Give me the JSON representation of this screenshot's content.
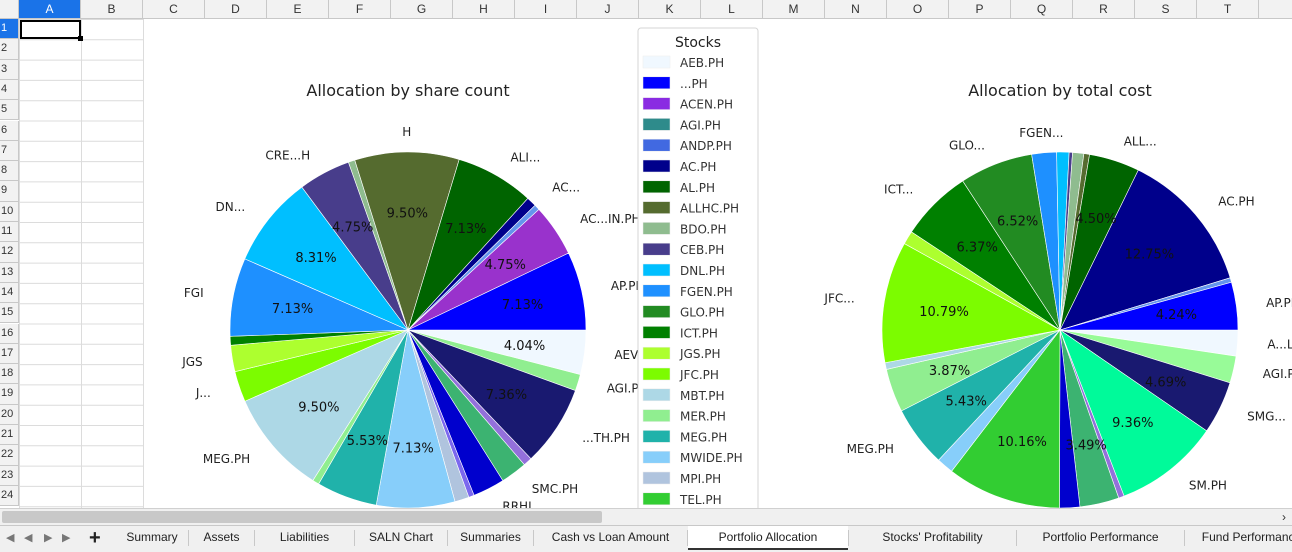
{
  "spreadsheet": {
    "columns": [
      "A",
      "B",
      "C",
      "D",
      "E",
      "F",
      "G",
      "H",
      "I",
      "J",
      "K",
      "L",
      "M",
      "N",
      "O",
      "P",
      "Q",
      "R",
      "S",
      "T"
    ],
    "active_column": "A",
    "rows": [
      "1",
      "2",
      "3",
      "4",
      "5",
      "6",
      "7",
      "8",
      "9",
      "10",
      "11",
      "12",
      "13",
      "14",
      "15",
      "16",
      "17",
      "18",
      "19",
      "20",
      "21",
      "22",
      "23",
      "24"
    ],
    "active_row": "1"
  },
  "charts": {
    "legend_title": "Stocks",
    "legend_items": [
      {
        "label": "AEB.PH",
        "color": "#f0f8ff"
      },
      {
        "label": "...PH",
        "color": "#0000ff"
      },
      {
        "label": "ACEN.PH",
        "color": "#8a2be2"
      },
      {
        "label": "AGI.PH",
        "color": "#2e8b8b"
      },
      {
        "label": "ANDP.PH",
        "color": "#4169e1"
      },
      {
        "label": "AC.PH",
        "color": "#00008b"
      },
      {
        "label": "AL.PH",
        "color": "#006400"
      },
      {
        "label": "ALLHC.PH",
        "color": "#556b2f"
      },
      {
        "label": "BDO.PH",
        "color": "#8fbc8f"
      },
      {
        "label": "CEB.PH",
        "color": "#483d8b"
      },
      {
        "label": "DNL.PH",
        "color": "#00bfff"
      },
      {
        "label": "FGEN.PH",
        "color": "#1e90ff"
      },
      {
        "label": "GLO.PH",
        "color": "#228b22"
      },
      {
        "label": "ICT.PH",
        "color": "#008000"
      },
      {
        "label": "JGS.PH",
        "color": "#adff2f"
      },
      {
        "label": "JFC.PH",
        "color": "#7cfc00"
      },
      {
        "label": "MBT.PH",
        "color": "#add8e6"
      },
      {
        "label": "MER.PH",
        "color": "#90ee90"
      },
      {
        "label": "MEG.PH",
        "color": "#20b2aa"
      },
      {
        "label": "MWIDE.PH",
        "color": "#87cefa"
      },
      {
        "label": "MPI.PH",
        "color": "#b0c4de"
      },
      {
        "label": "TEL.PH",
        "color": "#32cd32"
      }
    ],
    "pie1": {
      "title": "Allocation by share count",
      "slices": [
        {
          "value": 4.04,
          "color": "#f0f8ff",
          "label": "4.04%",
          "name": "AEV.PH"
        },
        {
          "value": 1.5,
          "color": "#90ee90",
          "label": "",
          "name": "AGI.PH"
        },
        {
          "value": 7.36,
          "color": "#191970",
          "label": "7.36%",
          "name": "...TH.PH"
        },
        {
          "value": 0.8,
          "color": "#9370db",
          "label": "",
          "name": ""
        },
        {
          "value": 2.4,
          "color": "#3cb371",
          "label": "",
          "name": "SMC.PH"
        },
        {
          "value": 2.9,
          "color": "#0000cd",
          "label": "",
          "name": "RRHI"
        },
        {
          "value": 0.5,
          "color": "#7b68ee",
          "label": "",
          "name": ""
        },
        {
          "value": 1.3,
          "color": "#b0c4de",
          "label": "",
          "name": ""
        },
        {
          "value": 7.13,
          "color": "#87cefa",
          "label": "7.13%",
          "name": ""
        },
        {
          "value": 5.53,
          "color": "#20b2aa",
          "label": "5.53%",
          "name": ""
        },
        {
          "value": 0.6,
          "color": "#90ee90",
          "label": "",
          "name": ""
        },
        {
          "value": 9.5,
          "color": "#add8e6",
          "label": "9.50%",
          "name": "MEG.PH"
        },
        {
          "value": 2.8,
          "color": "#7cfc00",
          "label": "",
          "name": "J..."
        },
        {
          "value": 2.4,
          "color": "#adff2f",
          "label": "",
          "name": "JGS"
        },
        {
          "value": 0.8,
          "color": "#008000",
          "label": "",
          "name": ""
        },
        {
          "value": 7.13,
          "color": "#1e90ff",
          "label": "7.13%",
          "name": "FGI"
        },
        {
          "value": 8.31,
          "color": "#00bfff",
          "label": "8.31%",
          "name": "DN..."
        },
        {
          "value": 4.75,
          "color": "#483d8b",
          "label": "4.75%",
          "name": "CRE...H"
        },
        {
          "value": 0.6,
          "color": "#8fbc8f",
          "label": "",
          "name": ""
        },
        {
          "value": 9.5,
          "color": "#556b2f",
          "label": "9.50%",
          "name": "H"
        },
        {
          "value": 7.13,
          "color": "#006400",
          "label": "7.13%",
          "name": "ALI..."
        },
        {
          "value": 0.9,
          "color": "#00008b",
          "label": "",
          "name": "AC..."
        },
        {
          "value": 0.5,
          "color": "#6495ed",
          "label": "",
          "name": ""
        },
        {
          "value": 4.75,
          "color": "#9932cc",
          "label": "4.75%",
          "name": "AC...IN.PH"
        },
        {
          "value": 7.13,
          "color": "#0000ff",
          "label": "7.13%",
          "name": "AP.PH"
        }
      ]
    },
    "pie2": {
      "title": "Allocation by total cost",
      "slices": [
        {
          "value": 2.3,
          "color": "#f0f8ff",
          "label": "",
          "name": "A...L"
        },
        {
          "value": 2.4,
          "color": "#98fb98",
          "label": "",
          "name": "AGI.PH"
        },
        {
          "value": 4.69,
          "color": "#191970",
          "label": "4.69%",
          "name": "SMG..."
        },
        {
          "value": 9.36,
          "color": "#00fa9a",
          "label": "9.36%",
          "name": "SM.PH"
        },
        {
          "value": 0.5,
          "color": "#9370db",
          "label": "",
          "name": ""
        },
        {
          "value": 3.49,
          "color": "#3cb371",
          "label": "3.49%",
          "name": ""
        },
        {
          "value": 1.8,
          "color": "#0000cd",
          "label": "",
          "name": ""
        },
        {
          "value": 10.16,
          "color": "#32cd32",
          "label": "10.16%",
          "name": ""
        },
        {
          "value": 1.5,
          "color": "#87cefa",
          "label": "",
          "name": ""
        },
        {
          "value": 5.43,
          "color": "#20b2aa",
          "label": "5.43%",
          "name": "MEG.PH"
        },
        {
          "value": 3.87,
          "color": "#90ee90",
          "label": "3.87%",
          "name": ""
        },
        {
          "value": 0.6,
          "color": "#add8e6",
          "label": "",
          "name": ""
        },
        {
          "value": 10.79,
          "color": "#7cfc00",
          "label": "10.79%",
          "name": "JFC..."
        },
        {
          "value": 1.2,
          "color": "#adff2f",
          "label": "",
          "name": ""
        },
        {
          "value": 6.37,
          "color": "#008000",
          "label": "6.37%",
          "name": "ICT..."
        },
        {
          "value": 6.52,
          "color": "#228b22",
          "label": "6.52%",
          "name": "GLO..."
        },
        {
          "value": 2.2,
          "color": "#1e90ff",
          "label": "",
          "name": "FGEN..."
        },
        {
          "value": 1.1,
          "color": "#00bfff",
          "label": "",
          "name": ""
        },
        {
          "value": 0.3,
          "color": "#483d8b",
          "label": "",
          "name": ""
        },
        {
          "value": 1.0,
          "color": "#8fbc8f",
          "label": "",
          "name": ""
        },
        {
          "value": 0.5,
          "color": "#556b2f",
          "label": "",
          "name": ""
        },
        {
          "value": 4.5,
          "color": "#006400",
          "label": "4.50%",
          "name": "ALL..."
        },
        {
          "value": 12.75,
          "color": "#00008b",
          "label": "12.75%",
          "name": "AC.PH"
        },
        {
          "value": 0.4,
          "color": "#6495ed",
          "label": "",
          "name": ""
        },
        {
          "value": 4.24,
          "color": "#0000ff",
          "label": "4.24%",
          "name": "AP.PH"
        }
      ]
    }
  },
  "tabs": [
    {
      "label": "Summary",
      "active": false
    },
    {
      "label": "Assets",
      "active": false
    },
    {
      "label": "Liabilities",
      "active": false
    },
    {
      "label": "SALN Chart",
      "active": false
    },
    {
      "label": "Summaries",
      "active": false
    },
    {
      "label": "Cash vs Loan Amount",
      "active": false
    },
    {
      "label": "Portfolio Allocation",
      "active": true
    },
    {
      "label": "Stocks' Profitability",
      "active": false
    },
    {
      "label": "Portfolio Performance",
      "active": false
    },
    {
      "label": "Fund Performance",
      "active": false
    }
  ],
  "tabbar": {
    "add_label": "+"
  }
}
